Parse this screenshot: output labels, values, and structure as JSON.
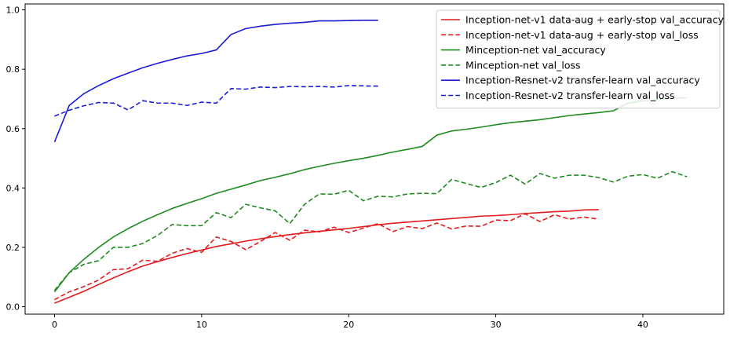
{
  "chart_data": {
    "type": "line",
    "title": "",
    "xlabel": "",
    "ylabel": "",
    "xlim": [
      -2,
      45.5
    ],
    "ylim": [
      -0.025,
      1.02
    ],
    "x_ticks": [
      0,
      10,
      20,
      30,
      40
    ],
    "y_ticks": [
      0.0,
      0.2,
      0.4,
      0.6,
      0.8,
      1.0
    ],
    "x_tick_labels": [
      "0",
      "10",
      "20",
      "30",
      "40"
    ],
    "y_tick_labels": [
      "0.0",
      "0.2",
      "0.4",
      "0.6",
      "0.8",
      "1.0"
    ],
    "grid": false,
    "legend_position": "top-right",
    "series": [
      {
        "name": "Inception-net-v1 data-aug + early-stop val_accuracy",
        "color": "#e41a1c",
        "dash": "solid",
        "values": [
          0.012,
          0.032,
          0.052,
          0.075,
          0.097,
          0.118,
          0.137,
          0.152,
          0.166,
          0.179,
          0.191,
          0.203,
          0.212,
          0.221,
          0.229,
          0.236,
          0.243,
          0.249,
          0.254,
          0.259,
          0.264,
          0.27,
          0.276,
          0.281,
          0.285,
          0.289,
          0.293,
          0.297,
          0.301,
          0.305,
          0.307,
          0.31,
          0.314,
          0.317,
          0.32,
          0.322,
          0.326,
          0.327
        ]
      },
      {
        "name": "Inception-net-v1 data-aug + early-stop val_loss",
        "color": "#e41a1c",
        "dash": "dashed",
        "values": [
          0.024,
          0.05,
          0.068,
          0.09,
          0.125,
          0.128,
          0.157,
          0.153,
          0.18,
          0.196,
          0.183,
          0.235,
          0.22,
          0.192,
          0.22,
          0.25,
          0.224,
          0.258,
          0.252,
          0.268,
          0.25,
          0.265,
          0.28,
          0.253,
          0.27,
          0.263,
          0.282,
          0.262,
          0.272,
          0.271,
          0.292,
          0.29,
          0.313,
          0.287,
          0.31,
          0.295,
          0.302,
          0.295
        ]
      },
      {
        "name": "Minception-net val_accuracy",
        "color": "#1f8b1f",
        "dash": "solid",
        "values": [
          0.05,
          0.115,
          0.16,
          0.2,
          0.235,
          0.263,
          0.288,
          0.31,
          0.331,
          0.348,
          0.364,
          0.382,
          0.396,
          0.41,
          0.425,
          0.436,
          0.448,
          0.462,
          0.473,
          0.483,
          0.492,
          0.5,
          0.51,
          0.521,
          0.53,
          0.54,
          0.578,
          0.592,
          0.598,
          0.605,
          0.613,
          0.62,
          0.625,
          0.63,
          0.637,
          0.644,
          0.649,
          0.654,
          0.66,
          0.686,
          0.693,
          0.698,
          0.702,
          0.704
        ]
      },
      {
        "name": "Minception-net val_loss",
        "color": "#1f8b1f",
        "dash": "dashed",
        "values": [
          0.055,
          0.115,
          0.143,
          0.155,
          0.2,
          0.2,
          0.213,
          0.24,
          0.277,
          0.273,
          0.273,
          0.317,
          0.3,
          0.345,
          0.333,
          0.323,
          0.28,
          0.345,
          0.38,
          0.379,
          0.392,
          0.357,
          0.372,
          0.37,
          0.38,
          0.382,
          0.381,
          0.429,
          0.415,
          0.402,
          0.418,
          0.443,
          0.413,
          0.449,
          0.433,
          0.443,
          0.443,
          0.435,
          0.42,
          0.44,
          0.445,
          0.433,
          0.455,
          0.438
        ]
      },
      {
        "name": "Inception-Resnet-v2 transfer-learn val_accuracy",
        "color": "#1c1cd6",
        "dash": "solid",
        "values": [
          0.555,
          0.678,
          0.718,
          0.745,
          0.768,
          0.787,
          0.805,
          0.82,
          0.833,
          0.845,
          0.853,
          0.865,
          0.917,
          0.937,
          0.945,
          0.951,
          0.955,
          0.958,
          0.963,
          0.963,
          0.964,
          0.965,
          0.965
        ]
      },
      {
        "name": "Inception-Resnet-v2 transfer-learn val_loss",
        "color": "#1c1cd6",
        "dash": "dashed",
        "values": [
          0.642,
          0.662,
          0.677,
          0.688,
          0.686,
          0.663,
          0.694,
          0.686,
          0.686,
          0.678,
          0.689,
          0.686,
          0.735,
          0.733,
          0.74,
          0.738,
          0.742,
          0.741,
          0.742,
          0.74,
          0.745,
          0.744,
          0.743
        ]
      }
    ]
  }
}
